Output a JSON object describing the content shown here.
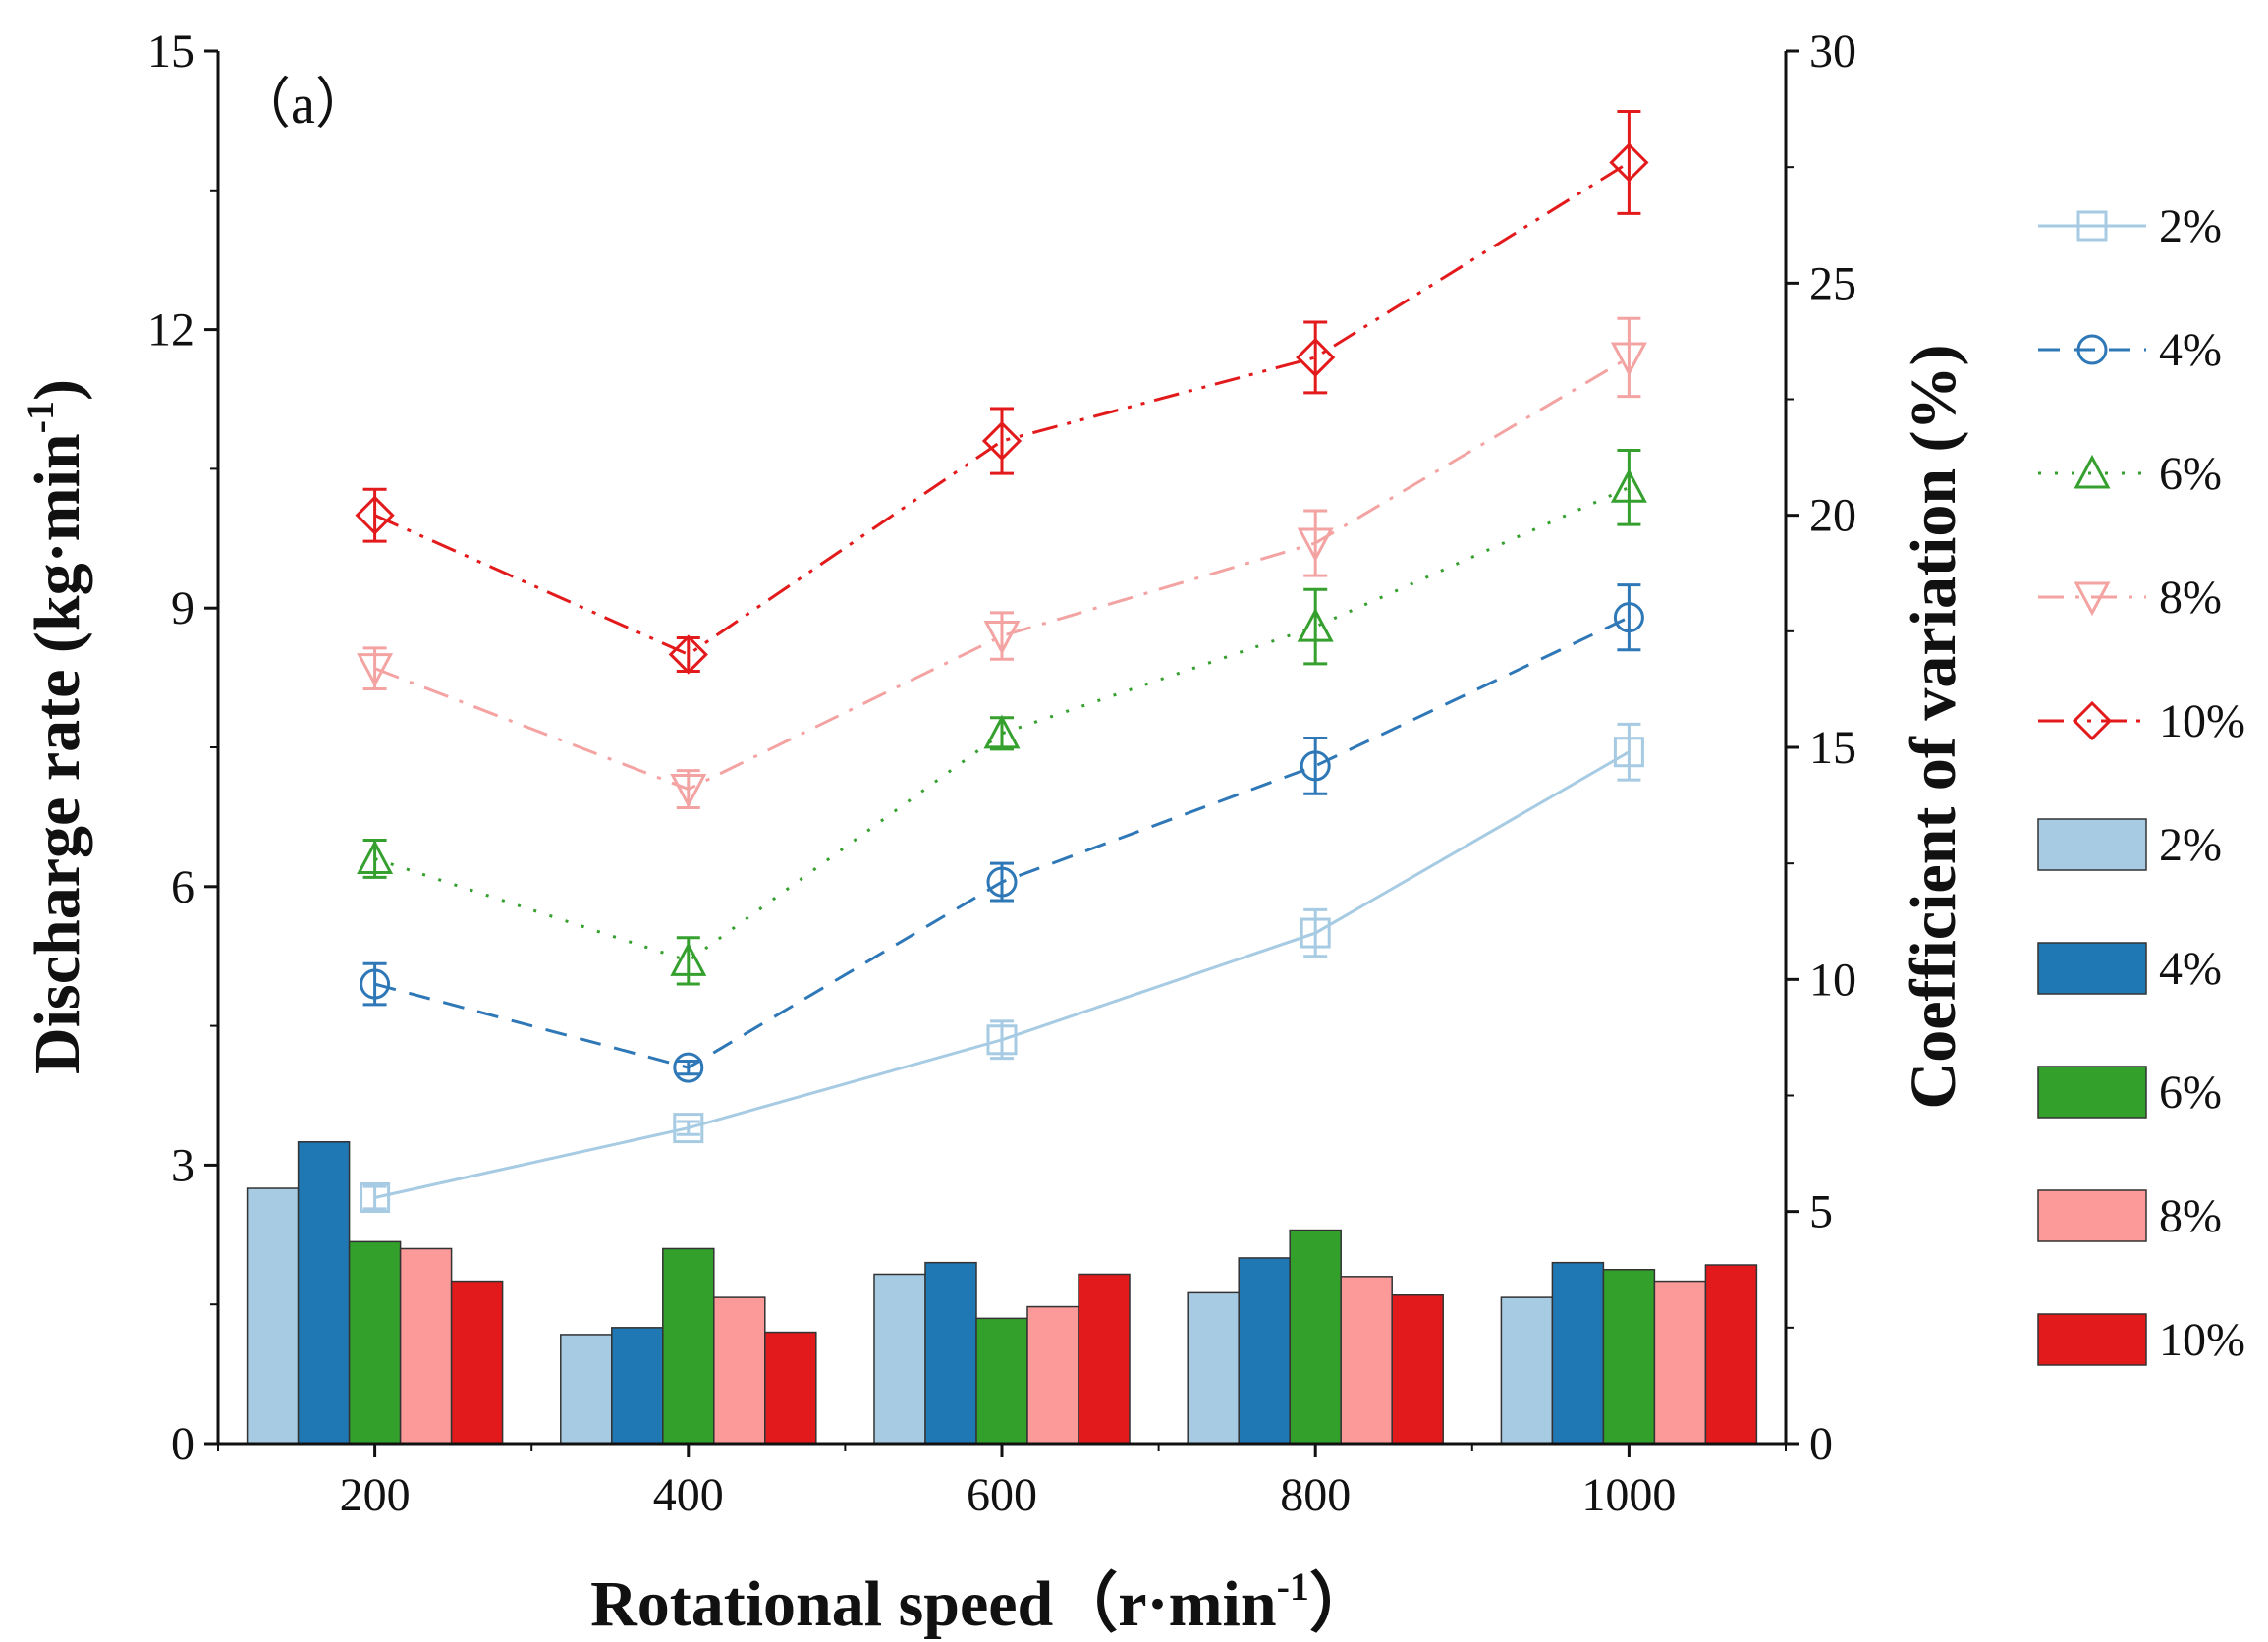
{
  "chart_data": {
    "type": "bar+line",
    "panel_label": "（a）",
    "xlabel_main": "Rotational speed",
    "xlabel_unit": "（r·min",
    "xlabel_exp": "-1",
    "xlabel_close": "）",
    "ylabel_left_main": "Discharge rate (kg·min",
    "ylabel_left_exp": "-1",
    "ylabel_left_close": ")",
    "ylabel_right": "Coefficient of variation (%)",
    "categories": [
      "200",
      "400",
      "600",
      "800",
      "1000"
    ],
    "left_axis": {
      "min": 0,
      "max": 15,
      "ticks": [
        "0",
        "3",
        "6",
        "9",
        "12",
        "15"
      ]
    },
    "right_axis": {
      "min": 0,
      "max": 30,
      "ticks": [
        "0",
        "5",
        "10",
        "15",
        "20",
        "25",
        "30"
      ]
    },
    "line_series": [
      {
        "name": "2%",
        "color": "#a6cbe3",
        "dash": "solid",
        "marker": "square",
        "values": [
          2.65,
          3.4,
          4.35,
          5.5,
          7.45
        ],
        "errors": [
          0.12,
          0.07,
          0.2,
          0.25,
          0.3
        ]
      },
      {
        "name": "4%",
        "color": "#2f78b7",
        "dash": "dash",
        "marker": "circle",
        "values": [
          4.95,
          4.05,
          6.05,
          7.3,
          8.9
        ],
        "errors": [
          0.22,
          0.07,
          0.2,
          0.3,
          0.35
        ]
      },
      {
        "name": "6%",
        "color": "#35a02e",
        "dash": "dot",
        "marker": "triangle-up",
        "values": [
          6.3,
          5.2,
          7.65,
          8.8,
          10.3
        ],
        "errors": [
          0.2,
          0.25,
          0.17,
          0.4,
          0.4
        ]
      },
      {
        "name": "8%",
        "color": "#f4a3a3",
        "dash": "dashdot",
        "marker": "triangle-down",
        "values": [
          8.35,
          7.05,
          8.7,
          9.7,
          11.7
        ],
        "errors": [
          0.22,
          0.2,
          0.25,
          0.35,
          0.42
        ]
      },
      {
        "name": "10%",
        "color": "#e31a1c",
        "dash": "dashdotdot",
        "marker": "diamond",
        "values": [
          10.0,
          8.5,
          10.8,
          11.7,
          13.8
        ],
        "errors": [
          0.28,
          0.18,
          0.35,
          0.38,
          0.55
        ]
      }
    ],
    "bar_series": [
      {
        "name": "2%",
        "color": "#a6cbe3",
        "values": [
          5.5,
          2.35,
          3.65,
          3.25,
          3.15
        ]
      },
      {
        "name": "4%",
        "color": "#1f78b4",
        "values": [
          6.5,
          2.5,
          3.9,
          4.0,
          3.9
        ]
      },
      {
        "name": "6%",
        "color": "#33a02c",
        "values": [
          4.35,
          4.2,
          2.7,
          4.6,
          3.75
        ]
      },
      {
        "name": "8%",
        "color": "#fb9a99",
        "values": [
          4.2,
          3.15,
          2.95,
          3.6,
          3.5
        ]
      },
      {
        "name": "10%",
        "color": "#e31a1c",
        "values": [
          3.5,
          2.4,
          3.65,
          3.2,
          3.85
        ]
      }
    ],
    "legend_position": "right"
  }
}
